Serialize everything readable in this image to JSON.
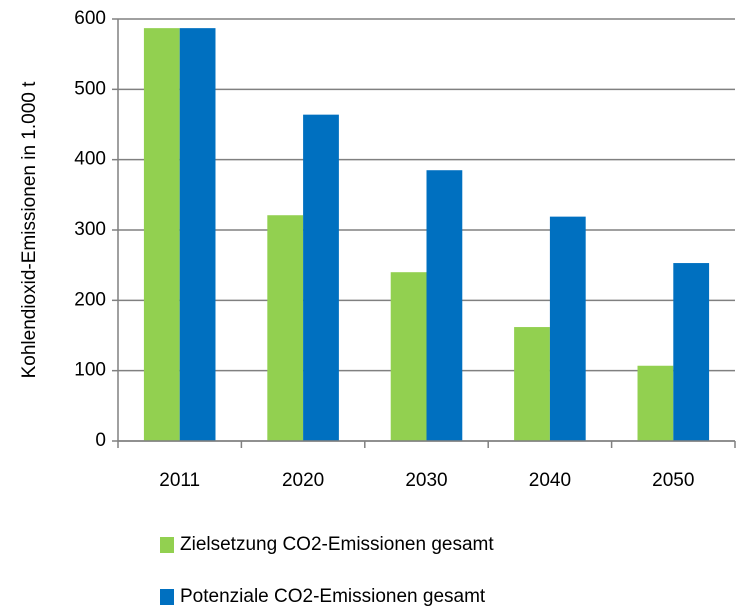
{
  "chart_data": {
    "type": "bar",
    "y_label": "Kohlendioxid-Emissionen in 1.000 t",
    "categories": [
      "2011",
      "2020",
      "2030",
      "2040",
      "2050"
    ],
    "series": [
      {
        "name": "Zielsetzung CO2-Emissionen gesamt",
        "color": "#92d050",
        "values": [
          587,
          321,
          240,
          162,
          107
        ]
      },
      {
        "name": "Potenziale CO2-Emissionen gesamt",
        "color": "#0070c0",
        "values": [
          587,
          464,
          385,
          319,
          253
        ]
      }
    ],
    "ylim": [
      0,
      600
    ],
    "yticks": [
      0,
      100,
      200,
      300,
      400,
      500,
      600
    ],
    "grid": true,
    "legend": "bottom"
  }
}
